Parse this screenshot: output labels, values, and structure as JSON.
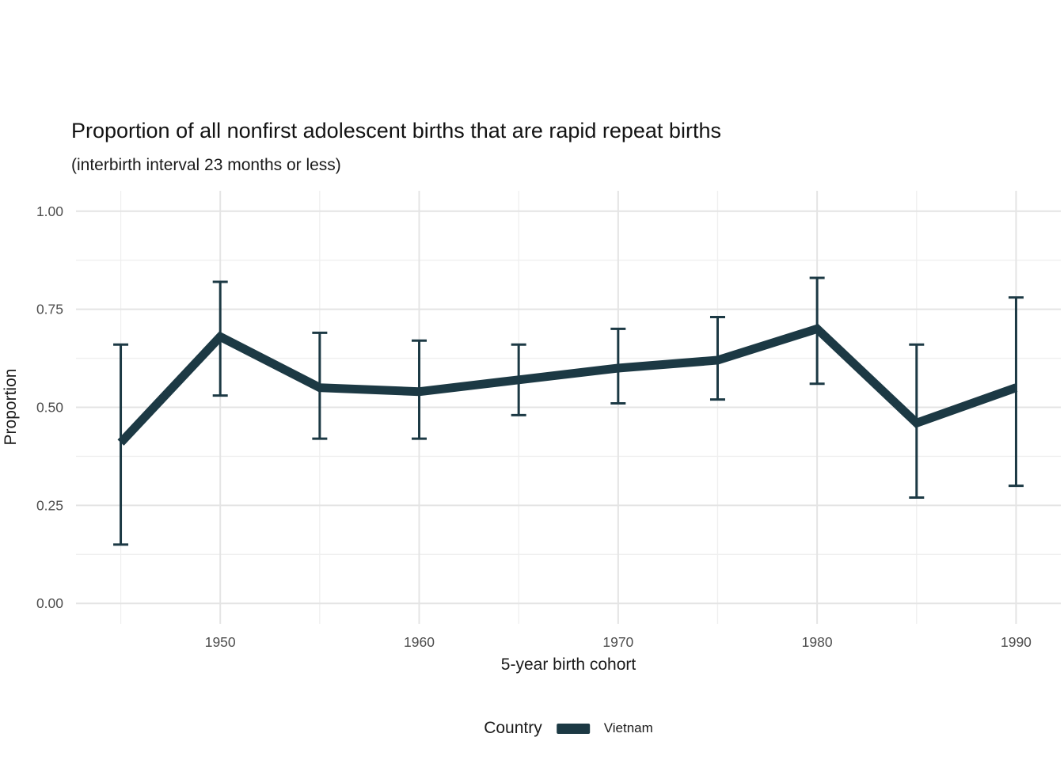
{
  "title": "Proportion of all nonfirst adolescent births that are rapid repeat births",
  "subtitle": "(interbirth interval 23 months or less)",
  "legend": {
    "title": "Country",
    "items": [
      {
        "label": "Vietnam",
        "color": "#1c3944"
      }
    ],
    "position": "bottom"
  },
  "colors": {
    "series": "#1c3944",
    "grid_major": "#e4e4e4",
    "grid_minor": "#efefef",
    "tick_label": "#4d4d4d",
    "text": "#1a1a1a",
    "background": "#ffffff"
  },
  "chart_data": {
    "type": "line",
    "title": "Proportion of all nonfirst adolescent births that are rapid repeat births",
    "subtitle": "(interbirth interval 23 months or less)",
    "xlabel": "5-year birth cohort",
    "ylabel": "Proportion",
    "x": [
      1945,
      1950,
      1955,
      1960,
      1965,
      1970,
      1975,
      1980,
      1985,
      1990
    ],
    "series": [
      {
        "name": "Vietnam",
        "color": "#1c3944",
        "values": [
          0.41,
          0.68,
          0.55,
          0.54,
          0.57,
          0.6,
          0.62,
          0.7,
          0.46,
          0.55
        ],
        "ci_low": [
          0.15,
          0.53,
          0.42,
          0.42,
          0.48,
          0.51,
          0.52,
          0.56,
          0.27,
          0.3
        ],
        "ci_high": [
          0.66,
          0.82,
          0.69,
          0.67,
          0.66,
          0.7,
          0.73,
          0.83,
          0.66,
          0.78
        ]
      }
    ],
    "error_bars": true,
    "xticks": [
      1950,
      1960,
      1970,
      1980,
      1990
    ],
    "xticks_minor": [
      1945,
      1955,
      1965,
      1975,
      1985
    ],
    "xtick_labels": [
      "1950",
      "1960",
      "1970",
      "1980",
      "1990"
    ],
    "yticks": [
      0,
      0.25,
      0.5,
      0.75,
      1.0
    ],
    "yticks_minor": [
      0.125,
      0.375,
      0.625,
      0.875
    ],
    "ytick_labels": [
      "0.00",
      "0.25",
      "0.50",
      "0.75",
      "1.00"
    ],
    "xlim": [
      1942.75,
      1992.25
    ],
    "ylim": [
      -0.052,
      1.052
    ],
    "grid": "major+minor",
    "legend_position": "bottom"
  }
}
